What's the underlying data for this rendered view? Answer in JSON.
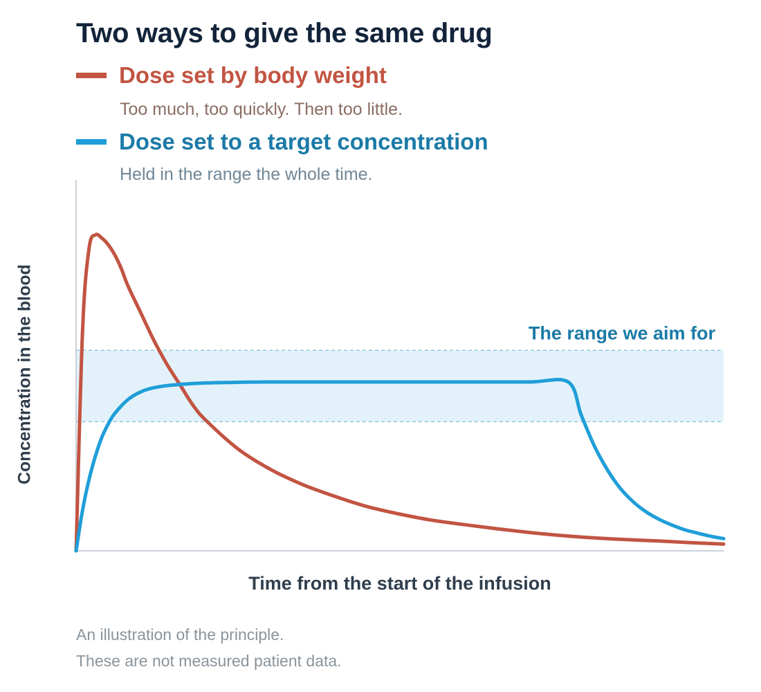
{
  "colors": {
    "weight": "#c25442",
    "target": "#1f9ed8",
    "target_label": "#1b7aa7",
    "band_fill": "#e3f2fa",
    "band_edge": "#8fc6de",
    "axis": "#c9d1d8"
  },
  "header": {
    "title": "Two ways to give the same drug"
  },
  "legend": {
    "weight": {
      "label": "Dose set by body weight",
      "note": "Too much, too quickly. Then too little."
    },
    "target": {
      "label": "Dose set to a target concentration",
      "note": "Held in the range the whole time."
    }
  },
  "chart_data": {
    "type": "line",
    "xlabel": "Time from the start of the infusion",
    "ylabel": "Concentration in the blood",
    "xlim": [
      0,
      100
    ],
    "ylim": [
      0,
      100
    ],
    "grid": false,
    "legend_position": "top-left",
    "target_range": {
      "low": 38,
      "high": 59,
      "label": "The range we aim for"
    },
    "series": [
      {
        "name": "Dose set by body weight",
        "values": [
          [
            0,
            0
          ],
          [
            1,
            65
          ],
          [
            2,
            89
          ],
          [
            3,
            93
          ],
          [
            4,
            92
          ],
          [
            5,
            90
          ],
          [
            6,
            87
          ],
          [
            7,
            83
          ],
          [
            8,
            78
          ],
          [
            10,
            70
          ],
          [
            12,
            62
          ],
          [
            14,
            55
          ],
          [
            16,
            49
          ],
          [
            18,
            43
          ],
          [
            20,
            38.5
          ],
          [
            25,
            30
          ],
          [
            30,
            24
          ],
          [
            35,
            19.5
          ],
          [
            40,
            16
          ],
          [
            45,
            13
          ],
          [
            50,
            10.8
          ],
          [
            55,
            9
          ],
          [
            60,
            7.7
          ],
          [
            65,
            6.5
          ],
          [
            70,
            5.4
          ],
          [
            75,
            4.5
          ],
          [
            80,
            3.8
          ],
          [
            85,
            3.3
          ],
          [
            90,
            2.9
          ],
          [
            95,
            2.4
          ],
          [
            100,
            2
          ]
        ]
      },
      {
        "name": "Dose set to a target concentration",
        "values": [
          [
            0,
            0
          ],
          [
            1,
            12
          ],
          [
            2,
            21
          ],
          [
            3,
            28
          ],
          [
            4,
            33.5
          ],
          [
            5,
            37.5
          ],
          [
            6,
            40.5
          ],
          [
            8,
            44.5
          ],
          [
            10,
            46.8
          ],
          [
            12,
            48
          ],
          [
            15,
            48.8
          ],
          [
            20,
            49.4
          ],
          [
            25,
            49.6
          ],
          [
            30,
            49.7
          ],
          [
            40,
            49.7
          ],
          [
            50,
            49.7
          ],
          [
            60,
            49.7
          ],
          [
            70,
            49.7
          ],
          [
            76,
            49.7
          ],
          [
            78,
            40
          ],
          [
            80,
            31
          ],
          [
            82,
            24
          ],
          [
            84,
            18.5
          ],
          [
            86,
            14.5
          ],
          [
            88,
            11.5
          ],
          [
            90,
            9.3
          ],
          [
            92,
            7.6
          ],
          [
            94,
            6.2
          ],
          [
            96,
            5.2
          ],
          [
            98,
            4.3
          ],
          [
            100,
            3.6
          ]
        ]
      }
    ]
  },
  "footer": {
    "line1": "An illustration of the principle.",
    "line2": "These are not measured patient data."
  }
}
